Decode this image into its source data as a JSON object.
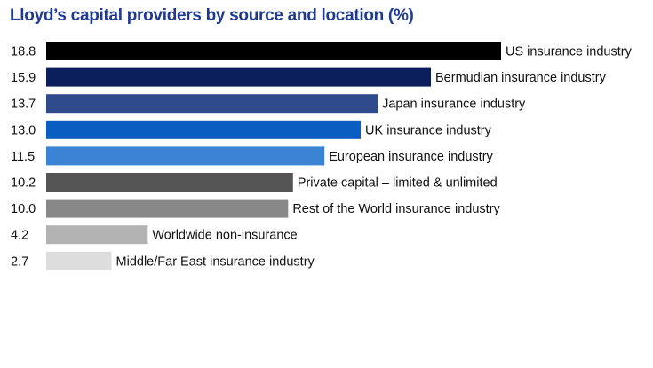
{
  "chart_data": {
    "type": "bar",
    "orientation": "horizontal",
    "title": "Lloyd’s capital providers by source and location (%)",
    "categories": [
      "US insurance industry",
      "Bermudian insurance industry",
      "Japan insurance industry",
      "UK insurance industry",
      "European insurance industry",
      "Private capital – limited & unlimited",
      "Rest of the World insurance industry",
      "Worldwide non-insurance",
      "Middle/Far East insurance industry"
    ],
    "values": [
      18.8,
      15.9,
      13.7,
      13.0,
      11.5,
      10.2,
      10.0,
      4.2,
      2.7
    ],
    "value_labels": [
      "18.8",
      "15.9",
      "13.7",
      "13.0",
      "11.5",
      "10.2",
      "10.0",
      "4.2",
      "2.7"
    ],
    "colors": [
      "#000000",
      "#0a1f5c",
      "#2f4b8c",
      "#0b5ec1",
      "#3b83d3",
      "#555555",
      "#888888",
      "#b3b3b3",
      "#dddddd"
    ],
    "xlim": [
      0,
      18.8
    ],
    "grid": false,
    "legend": "none"
  }
}
